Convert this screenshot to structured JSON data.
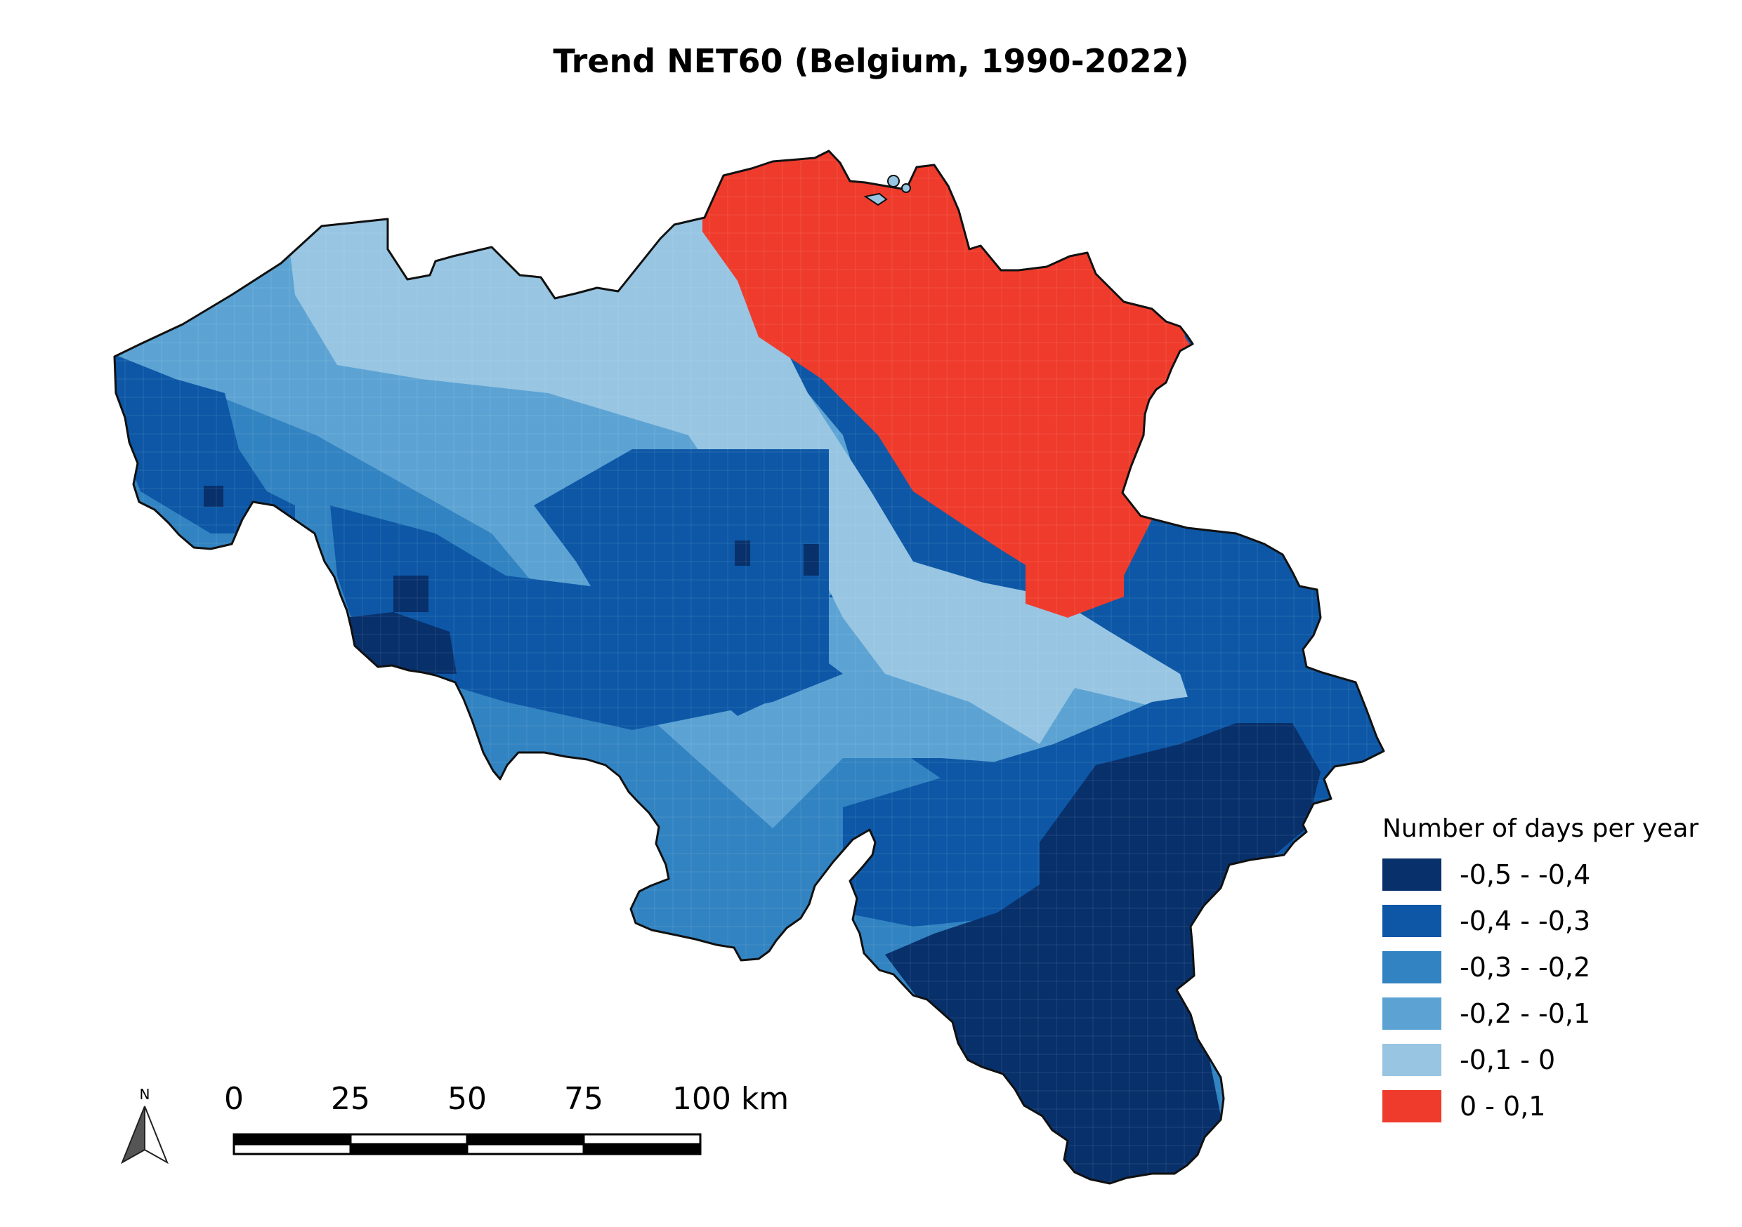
{
  "title": "Trend NET60 (Belgium, 1990-2022)",
  "legend": {
    "title": "Number of days per year",
    "items": [
      {
        "label": "-0,5 - -0,4",
        "color": "#08306b"
      },
      {
        "label": "-0,4 - -0,3",
        "color": "#0d57a6"
      },
      {
        "label": "-0,3 - -0,2",
        "color": "#3283c1"
      },
      {
        "label": "-0,2 - -0,1",
        "color": "#5ca3d4"
      },
      {
        "label": "-0,1 - 0",
        "color": "#97c5e2"
      },
      {
        "label": "0 - 0,1",
        "color": "#ef3b2c"
      }
    ]
  },
  "scale_bar": {
    "labels": [
      "0",
      "25",
      "50",
      "75",
      "100 km"
    ]
  },
  "north_arrow": {
    "label": "N",
    "icon": "north-arrow-icon"
  },
  "colors": {
    "border": "#111111",
    "grid_line": "#ffffff"
  }
}
